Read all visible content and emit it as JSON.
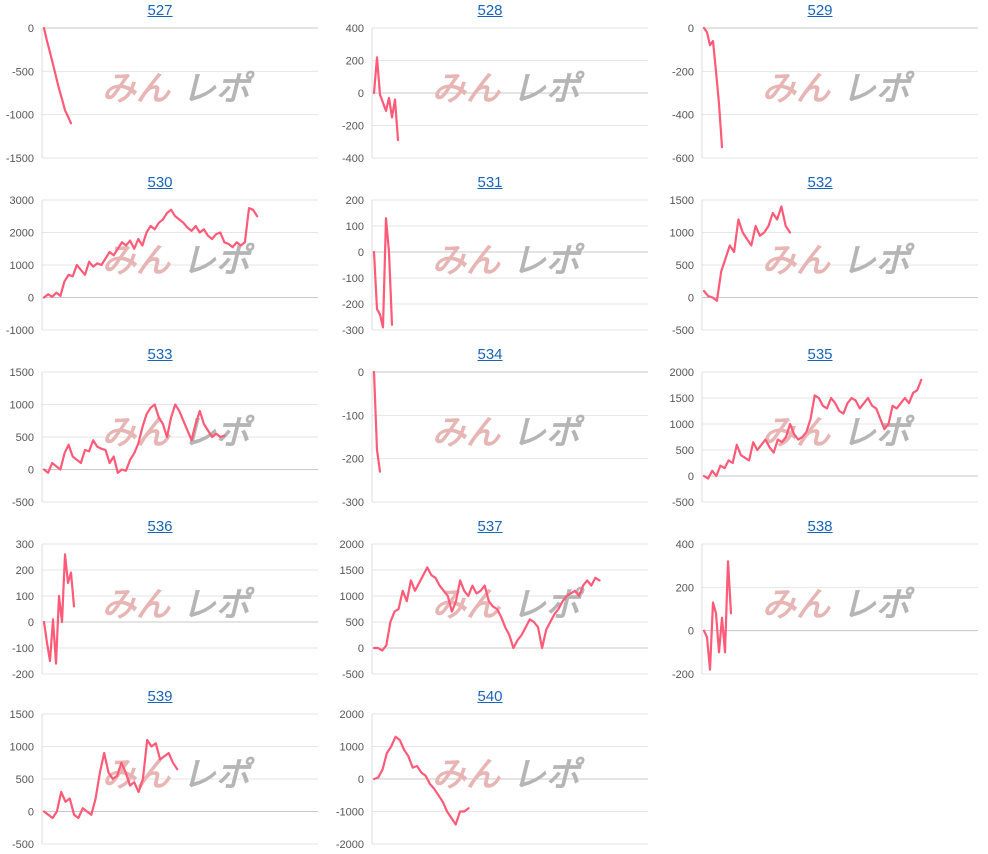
{
  "colors": {
    "line": "#ff5a77",
    "link": "#1a64b8"
  },
  "watermark": {
    "part1": "みん",
    "part2": "レポ"
  },
  "chart_data": [
    {
      "type": "line",
      "title": "527",
      "yticks": [
        0,
        -500,
        -1000,
        -1500
      ],
      "ylim": [
        -1500,
        0
      ],
      "values": [
        0,
        -150,
        -280,
        -420,
        -560,
        -700,
        -820,
        -950,
        -1020,
        -1100
      ]
    },
    {
      "type": "line",
      "title": "528",
      "yticks": [
        400,
        200,
        0,
        -200,
        -400
      ],
      "ylim": [
        -400,
        400
      ],
      "values": [
        0,
        220,
        -10,
        -60,
        -110,
        -30,
        -150,
        -40,
        -290
      ]
    },
    {
      "type": "line",
      "title": "529",
      "yticks": [
        0,
        -200,
        -400,
        -600
      ],
      "ylim": [
        -600,
        0
      ],
      "values": [
        0,
        -20,
        -80,
        -60,
        -200,
        -350,
        -550
      ]
    },
    {
      "type": "line",
      "title": "530",
      "yticks": [
        3000,
        2000,
        1000,
        0,
        -1000
      ],
      "ylim": [
        -1000,
        3000
      ],
      "values": [
        0,
        100,
        20,
        150,
        50,
        500,
        700,
        650,
        1000,
        850,
        700,
        1100,
        950,
        1050,
        1000,
        1200,
        1400,
        1300,
        1500,
        1700,
        1600,
        1750,
        1500,
        1800,
        1600,
        2000,
        2200,
        2100,
        2300,
        2400,
        2600,
        2700,
        2500,
        2400,
        2300,
        2150,
        2050,
        2200,
        2000,
        2100,
        1900,
        1800,
        1950,
        2000,
        1700,
        1650,
        1550,
        1700,
        1600,
        1700,
        2750,
        2700,
        2500
      ]
    },
    {
      "type": "line",
      "title": "531",
      "yticks": [
        200,
        100,
        0,
        -100,
        -200,
        -300
      ],
      "ylim": [
        -300,
        200
      ],
      "values": [
        0,
        -220,
        -240,
        -290,
        130,
        0,
        -280
      ]
    },
    {
      "type": "line",
      "title": "532",
      "yticks": [
        1500,
        1000,
        500,
        0,
        -500
      ],
      "ylim": [
        -500,
        1500
      ],
      "values": [
        100,
        20,
        0,
        -50,
        400,
        600,
        800,
        700,
        1200,
        1000,
        900,
        800,
        1100,
        950,
        1000,
        1100,
        1300,
        1200,
        1400,
        1100,
        1000
      ]
    },
    {
      "type": "line",
      "title": "533",
      "yticks": [
        1500,
        1000,
        500,
        0,
        -500
      ],
      "ylim": [
        -500,
        1500
      ],
      "values": [
        0,
        -50,
        100,
        50,
        0,
        250,
        380,
        200,
        150,
        100,
        300,
        280,
        450,
        350,
        320,
        300,
        100,
        200,
        -50,
        0,
        -20,
        150,
        250,
        400,
        650,
        850,
        950,
        1000,
        800,
        700,
        500,
        800,
        1000,
        900,
        750,
        600,
        450,
        700,
        900,
        700,
        600,
        500,
        550,
        500,
        520
      ]
    },
    {
      "type": "line",
      "title": "534",
      "yticks": [
        0,
        -100,
        -200,
        -300
      ],
      "ylim": [
        -300,
        0
      ],
      "values": [
        0,
        -180,
        -230
      ]
    },
    {
      "type": "line",
      "title": "535",
      "yticks": [
        2000,
        1500,
        1000,
        500,
        0,
        -500
      ],
      "ylim": [
        -500,
        2000
      ],
      "values": [
        0,
        -50,
        100,
        0,
        200,
        150,
        300,
        250,
        600,
        400,
        350,
        300,
        650,
        500,
        600,
        700,
        550,
        450,
        700,
        650,
        750,
        1000,
        800,
        700,
        750,
        850,
        1100,
        1550,
        1500,
        1350,
        1300,
        1500,
        1400,
        1250,
        1200,
        1400,
        1500,
        1450,
        1300,
        1400,
        1500,
        1350,
        1300,
        1100,
        900,
        1000,
        1350,
        1300,
        1400,
        1500,
        1400,
        1600,
        1650,
        1850
      ]
    },
    {
      "type": "line",
      "title": "536",
      "yticks": [
        300,
        200,
        100,
        0,
        -100,
        -200
      ],
      "ylim": [
        -200,
        300
      ],
      "values": [
        0,
        -80,
        -150,
        10,
        -160,
        100,
        0,
        260,
        150,
        190,
        60
      ]
    },
    {
      "type": "line",
      "title": "537",
      "yticks": [
        2000,
        1500,
        1000,
        500,
        0,
        -500
      ],
      "ylim": [
        -500,
        2000
      ],
      "values": [
        0,
        0,
        -50,
        50,
        500,
        700,
        750,
        1100,
        900,
        1300,
        1100,
        1250,
        1400,
        1550,
        1400,
        1350,
        1200,
        1100,
        1000,
        700,
        900,
        1300,
        1100,
        1000,
        1200,
        1050,
        1100,
        1200,
        900,
        800,
        750,
        600,
        400,
        250,
        0,
        150,
        250,
        400,
        550,
        500,
        400,
        0,
        350,
        500,
        650,
        750,
        900,
        1000,
        1050,
        1100,
        1000,
        1200,
        1300,
        1200,
        1350,
        1300
      ]
    },
    {
      "type": "line",
      "title": "538",
      "yticks": [
        400,
        200,
        0,
        -200
      ],
      "ylim": [
        -200,
        400
      ],
      "values": [
        0,
        -30,
        -180,
        130,
        80,
        -100,
        60,
        -100,
        320,
        80
      ]
    },
    {
      "type": "line",
      "title": "539",
      "yticks": [
        1500,
        1000,
        500,
        0,
        -500
      ],
      "ylim": [
        -500,
        1500
      ],
      "values": [
        0,
        -50,
        -100,
        0,
        300,
        150,
        200,
        -50,
        -100,
        50,
        0,
        -50,
        200,
        600,
        900,
        600,
        500,
        550,
        750,
        600,
        400,
        450,
        300,
        500,
        1100,
        1000,
        1050,
        800,
        850,
        900,
        750,
        650
      ]
    },
    {
      "type": "line",
      "title": "540",
      "yticks": [
        2000,
        1000,
        0,
        -1000,
        -2000
      ],
      "ylim": [
        -2000,
        2000
      ],
      "values": [
        0,
        50,
        300,
        800,
        1000,
        1300,
        1200,
        900,
        700,
        350,
        400,
        200,
        100,
        -150,
        -300,
        -500,
        -700,
        -1000,
        -1200,
        -1400,
        -1000,
        -1000,
        -900
      ]
    }
  ]
}
